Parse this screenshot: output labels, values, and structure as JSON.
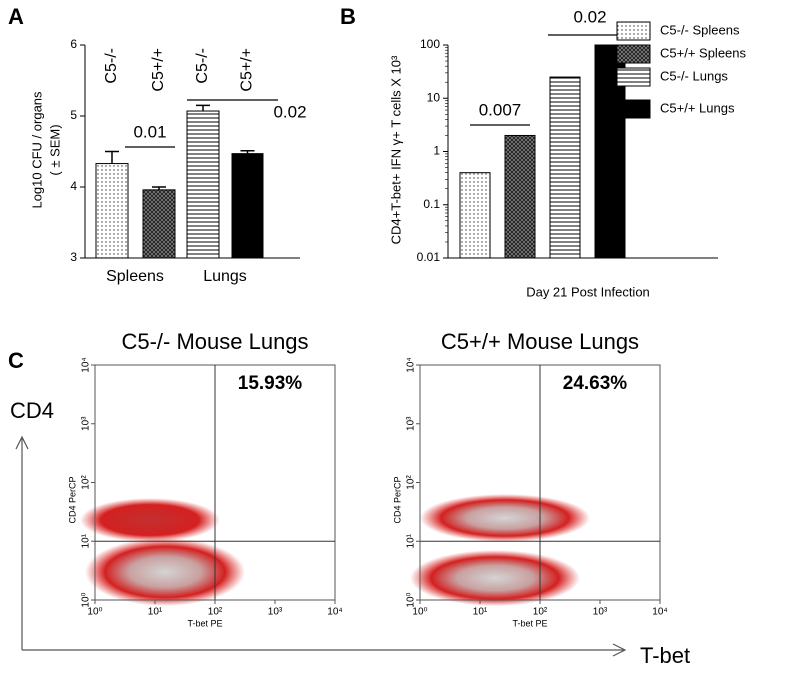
{
  "figure": {
    "panel_labels": [
      "A",
      "B",
      "C"
    ],
    "y_arrow_label": "CD4",
    "x_arrow_label": "T-bet"
  },
  "chart_data": [
    {
      "type": "bar",
      "ylabel": [
        "Log10 CFU / organs",
        "( ± SEM)"
      ],
      "categories": [
        "C5-/-",
        "C5+/+",
        "C5-/-",
        "C5+/+"
      ],
      "groups": [
        "Spleens",
        "Lungs"
      ],
      "values": [
        4.33,
        3.96,
        5.07,
        4.47
      ],
      "errors": [
        0.17,
        0.04,
        0.08,
        0.04
      ],
      "patterns": [
        "dots",
        "crosshatch",
        "hlines",
        "solid"
      ],
      "color": "#000000",
      "ylim": [
        3,
        6
      ],
      "yticks": [
        3,
        4,
        5,
        6
      ],
      "annotations": [
        "0.01",
        "0.02"
      ]
    },
    {
      "type": "bar",
      "log_scale": true,
      "ylabel": "CD4+T-bet+ IFN γ+ T cells X 10³",
      "xlabel": "Day 21 Post Infection",
      "series": [
        {
          "name": "C5-/- Spleens",
          "pattern": "dots",
          "values": [
            0.4
          ]
        },
        {
          "name": "C5+/+ Spleens",
          "pattern": "crosshatch",
          "values": [
            2
          ]
        },
        {
          "name": "C5-/- Lungs",
          "pattern": "hlines",
          "values": [
            25
          ]
        },
        {
          "name": "C5+/+ Lungs",
          "pattern": "solid",
          "values": [
            100
          ]
        }
      ],
      "color": "#000000",
      "ylim": [
        0.01,
        100
      ],
      "yticks": [
        0.01,
        0.1,
        1,
        10,
        100
      ],
      "annotations": [
        "0.007",
        "0.02"
      ]
    },
    {
      "type": "flow",
      "xlabel": "T-bet PE",
      "ylabel": "CD4 PerCP",
      "panels": [
        {
          "title": "C5-/- Mouse Lungs",
          "value": 15.93,
          "value_label": "15.93%"
        },
        {
          "title": "C5+/+ Mouse Lungs",
          "value": 24.63,
          "value_label": "24.63%"
        }
      ],
      "xlim": [
        1,
        10000
      ],
      "ylim": [
        1,
        10000
      ],
      "xticks": [
        {
          "value": 1,
          "label": "10⁰"
        },
        {
          "value": 10,
          "label": "10¹"
        },
        {
          "value": 100,
          "label": "10²"
        },
        {
          "value": 1000,
          "label": "10³"
        },
        {
          "value": 10000,
          "label": "10⁴"
        }
      ],
      "yticks": [
        {
          "value": 1,
          "label": "10⁰"
        },
        {
          "value": 10,
          "label": "10¹"
        },
        {
          "value": 100,
          "label": "10²"
        },
        {
          "value": 1000,
          "label": "10³"
        },
        {
          "value": 10000,
          "label": "10⁴"
        }
      ],
      "gates": {
        "x": 100,
        "y": 10
      }
    }
  ]
}
